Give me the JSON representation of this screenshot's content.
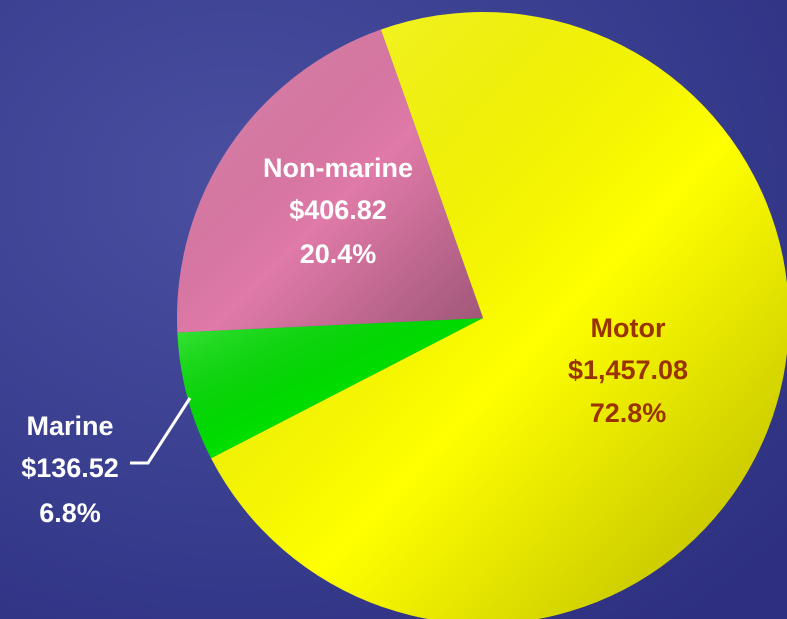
{
  "chart_data": {
    "type": "pie",
    "categories": [
      "Motor",
      "Marine",
      "Non-marine"
    ],
    "values": [
      1457.08,
      136.52,
      406.82
    ],
    "value_labels": [
      "$1,457.08",
      "$136.52",
      "$406.82"
    ],
    "percent_labels": [
      "72.8%",
      "6.8%",
      "20.4%"
    ],
    "colors": [
      "#ffff00",
      "#00e000",
      "#e07aa8"
    ],
    "label_colors": [
      "#993300",
      "#ffffff",
      "#ffffff"
    ]
  }
}
